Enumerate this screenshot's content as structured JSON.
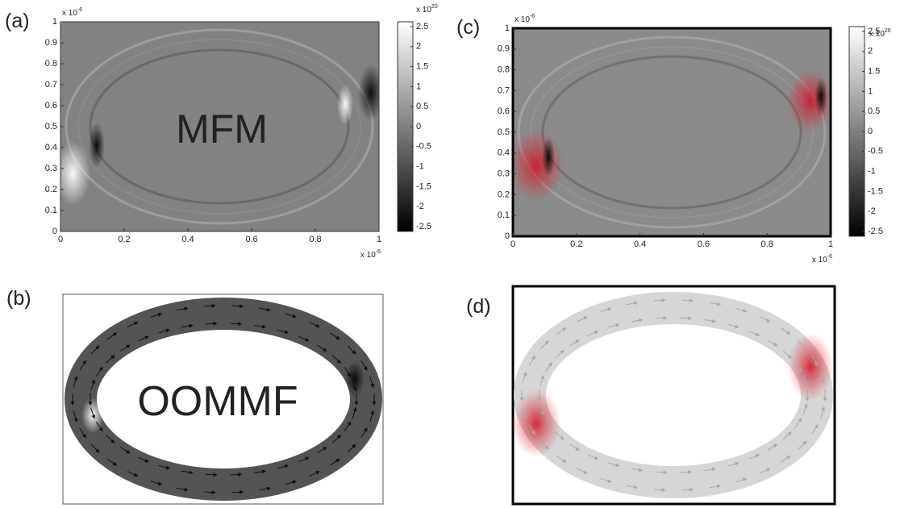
{
  "panels": [
    {
      "label": "(a)",
      "annotation": "MFM",
      "xticks": [
        0,
        0.2,
        0.4,
        0.6,
        0.8,
        1
      ],
      "yticks": [
        0,
        0.1,
        0.2,
        0.3,
        0.4,
        0.5,
        0.6,
        0.7,
        0.8,
        0.9,
        1
      ],
      "x_exponent": {
        "base": "x 10",
        "power": "-6"
      },
      "y_exponent": {
        "base": "x 10",
        "power": "-6"
      },
      "colorbar_ticks": [
        2.5,
        2,
        1.5,
        1,
        0.5,
        0,
        -0.5,
        -1,
        -1.5,
        -2,
        -2.5
      ],
      "colorbar_exponent": {
        "base": "x 10",
        "power": "20"
      }
    },
    {
      "label": "(b)",
      "annotation": "OOMMF"
    },
    {
      "label": "(c)",
      "xticks": [
        0,
        0.2,
        0.4,
        0.6,
        0.8,
        1
      ],
      "yticks": [
        0,
        0.1,
        0.2,
        0.3,
        0.4,
        0.5,
        0.6,
        0.7,
        0.8,
        0.9,
        1
      ],
      "x_exponent": {
        "base": "x 10",
        "power": "-6"
      },
      "y_exponent": {
        "base": "x 10",
        "power": "-6"
      },
      "colorbar_ticks": [
        2.5,
        2,
        1.5,
        1,
        0.5,
        0,
        -0.5,
        -1,
        -1.5,
        -2,
        -2.5
      ],
      "colorbar_exponent": {
        "base": "x 10",
        "power": "20"
      }
    },
    {
      "label": "(d)"
    }
  ]
}
